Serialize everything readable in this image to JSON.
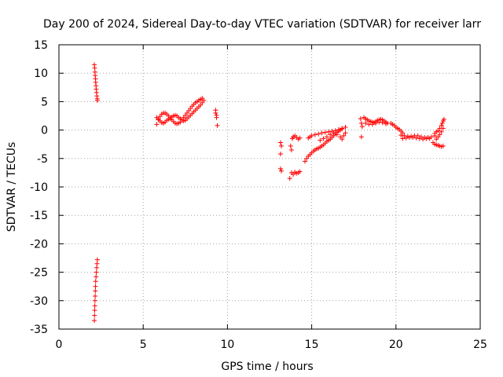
{
  "chart_data": {
    "type": "scatter",
    "title": "Day 200 of 2024, Sidereal Day-to-day VTEC variation (SDTVAR) for receiver larr",
    "xlabel": "GPS time / hours",
    "ylabel": "SDTVAR / TECUs",
    "xlim": [
      0,
      25
    ],
    "ylim": [
      -35,
      15
    ],
    "xticks": [
      0,
      5,
      10,
      15,
      20,
      25
    ],
    "yticks": [
      15,
      10,
      5,
      0,
      -5,
      -10,
      -15,
      -20,
      -25,
      -30,
      -35
    ],
    "xtick_labels": [
      "0",
      "5",
      "10",
      "15",
      "20",
      "25"
    ],
    "ytick_labels": [
      "15",
      "10",
      "5",
      "0",
      "-5",
      "-10",
      "-15",
      "-20",
      "-25",
      "-30",
      "-35"
    ],
    "grid": true,
    "marker": "+",
    "color": "#ff0000",
    "series": [
      {
        "name": "SDTVAR",
        "points": [
          [
            2.1,
            11.5
          ],
          [
            2.12,
            10.9
          ],
          [
            2.14,
            10.2
          ],
          [
            2.15,
            9.6
          ],
          [
            2.17,
            9.0
          ],
          [
            2.18,
            8.4
          ],
          [
            2.2,
            7.8
          ],
          [
            2.21,
            7.2
          ],
          [
            2.23,
            6.6
          ],
          [
            2.25,
            6.0
          ],
          [
            2.27,
            5.5
          ],
          [
            2.28,
            5.2
          ],
          [
            2.1,
            -33.5
          ],
          [
            2.11,
            -32.6
          ],
          [
            2.12,
            -31.7
          ],
          [
            2.13,
            -30.9
          ],
          [
            2.14,
            -30.0
          ],
          [
            2.15,
            -29.2
          ],
          [
            2.16,
            -28.3
          ],
          [
            2.17,
            -27.5
          ],
          [
            2.18,
            -26.6
          ],
          [
            2.2,
            -25.8
          ],
          [
            2.22,
            -25.0
          ],
          [
            2.24,
            -24.2
          ],
          [
            2.26,
            -23.5
          ],
          [
            2.28,
            -22.8
          ],
          [
            5.8,
            1.0
          ],
          [
            5.9,
            1.8
          ],
          [
            6.0,
            2.4
          ],
          [
            6.1,
            2.8
          ],
          [
            6.2,
            3.0
          ],
          [
            6.3,
            3.0
          ],
          [
            6.4,
            2.8
          ],
          [
            6.5,
            2.5
          ],
          [
            6.6,
            2.2
          ],
          [
            6.7,
            1.8
          ],
          [
            6.8,
            1.5
          ],
          [
            6.9,
            1.2
          ],
          [
            7.0,
            1.1
          ],
          [
            7.1,
            1.2
          ],
          [
            7.2,
            1.4
          ],
          [
            7.3,
            1.8
          ],
          [
            7.4,
            2.2
          ],
          [
            7.5,
            2.6
          ],
          [
            7.6,
            3.0
          ],
          [
            7.7,
            3.4
          ],
          [
            7.8,
            3.8
          ],
          [
            7.9,
            4.2
          ],
          [
            8.0,
            4.5
          ],
          [
            8.1,
            4.8
          ],
          [
            8.2,
            5.0
          ],
          [
            8.3,
            5.2
          ],
          [
            8.4,
            5.4
          ],
          [
            8.5,
            5.6
          ],
          [
            8.6,
            5.2
          ],
          [
            5.8,
            2.2
          ],
          [
            5.9,
            2.0
          ],
          [
            6.0,
            1.6
          ],
          [
            6.1,
            1.3
          ],
          [
            6.2,
            1.2
          ],
          [
            6.3,
            1.4
          ],
          [
            6.4,
            1.7
          ],
          [
            6.5,
            1.9
          ],
          [
            6.6,
            2.0
          ],
          [
            6.7,
            2.3
          ],
          [
            6.8,
            2.5
          ],
          [
            6.9,
            2.6
          ],
          [
            7.0,
            2.5
          ],
          [
            7.1,
            2.2
          ],
          [
            7.2,
            2.0
          ],
          [
            7.3,
            1.8
          ],
          [
            7.4,
            1.6
          ],
          [
            7.5,
            1.7
          ],
          [
            7.6,
            2.0
          ],
          [
            7.7,
            2.3
          ],
          [
            7.8,
            2.6
          ],
          [
            7.9,
            2.9
          ],
          [
            8.0,
            3.2
          ],
          [
            8.1,
            3.5
          ],
          [
            8.2,
            3.8
          ],
          [
            8.3,
            4.1
          ],
          [
            8.4,
            4.4
          ],
          [
            8.5,
            4.8
          ],
          [
            9.3,
            3.5
          ],
          [
            9.3,
            3.0
          ],
          [
            9.35,
            2.6
          ],
          [
            9.35,
            2.2
          ],
          [
            9.4,
            0.8
          ],
          [
            13.15,
            -2.2
          ],
          [
            13.2,
            -2.8
          ],
          [
            13.15,
            -4.2
          ],
          [
            13.15,
            -6.8
          ],
          [
            13.2,
            -7.2
          ],
          [
            13.7,
            -8.5
          ],
          [
            13.8,
            -7.5
          ],
          [
            13.9,
            -7.8
          ],
          [
            14.0,
            -7.4
          ],
          [
            14.1,
            -7.6
          ],
          [
            14.2,
            -7.5
          ],
          [
            14.3,
            -7.3
          ],
          [
            13.75,
            -2.8
          ],
          [
            13.8,
            -3.5
          ],
          [
            13.85,
            -1.5
          ],
          [
            13.9,
            -1.2
          ],
          [
            14.0,
            -1.0
          ],
          [
            14.1,
            -1.3
          ],
          [
            14.2,
            -1.6
          ],
          [
            14.3,
            -1.4
          ],
          [
            14.6,
            -5.5
          ],
          [
            14.7,
            -5.0
          ],
          [
            14.8,
            -4.6
          ],
          [
            14.9,
            -4.3
          ],
          [
            15.0,
            -4.0
          ],
          [
            15.1,
            -3.7
          ],
          [
            15.2,
            -3.5
          ],
          [
            15.3,
            -3.3
          ],
          [
            15.4,
            -3.2
          ],
          [
            15.5,
            -3.0
          ],
          [
            15.6,
            -2.8
          ],
          [
            15.7,
            -2.6
          ],
          [
            15.8,
            -2.3
          ],
          [
            15.9,
            -2.0
          ],
          [
            16.0,
            -1.8
          ],
          [
            16.1,
            -1.6
          ],
          [
            16.2,
            -1.3
          ],
          [
            16.3,
            -1.0
          ],
          [
            16.4,
            -0.7
          ],
          [
            16.5,
            -0.4
          ],
          [
            16.6,
            -0.2
          ],
          [
            16.7,
            0.0
          ],
          [
            16.8,
            0.2
          ],
          [
            14.8,
            -1.4
          ],
          [
            14.9,
            -1.2
          ],
          [
            15.0,
            -1.0
          ],
          [
            15.2,
            -0.8
          ],
          [
            15.4,
            -0.7
          ],
          [
            15.6,
            -0.5
          ],
          [
            15.8,
            -0.4
          ],
          [
            16.0,
            -0.3
          ],
          [
            16.2,
            -0.2
          ],
          [
            16.4,
            -0.1
          ],
          [
            16.6,
            0.1
          ],
          [
            16.8,
            0.3
          ],
          [
            17.0,
            0.5
          ],
          [
            15.5,
            -1.8
          ],
          [
            15.7,
            -1.5
          ],
          [
            15.9,
            -1.2
          ],
          [
            16.1,
            -0.8
          ],
          [
            16.3,
            -0.5
          ],
          [
            16.5,
            -0.8
          ],
          [
            16.7,
            -1.2
          ],
          [
            16.8,
            -1.6
          ],
          [
            16.9,
            -1.0
          ],
          [
            17.0,
            -0.5
          ],
          [
            17.9,
            2.0
          ],
          [
            17.95,
            1.2
          ],
          [
            18.0,
            0.6
          ],
          [
            17.95,
            -1.2
          ],
          [
            18.1,
            2.2
          ],
          [
            18.2,
            2.0
          ],
          [
            18.3,
            1.8
          ],
          [
            18.4,
            1.6
          ],
          [
            18.5,
            1.5
          ],
          [
            18.6,
            1.4
          ],
          [
            18.7,
            1.3
          ],
          [
            18.8,
            1.5
          ],
          [
            18.9,
            1.7
          ],
          [
            19.0,
            1.8
          ],
          [
            19.1,
            1.9
          ],
          [
            19.2,
            1.8
          ],
          [
            19.3,
            1.6
          ],
          [
            19.4,
            1.4
          ],
          [
            19.5,
            1.2
          ],
          [
            18.2,
            1.2
          ],
          [
            18.4,
            1.0
          ],
          [
            18.6,
            1.0
          ],
          [
            18.8,
            1.2
          ],
          [
            19.0,
            1.4
          ],
          [
            19.2,
            1.3
          ],
          [
            19.4,
            1.1
          ],
          [
            19.7,
            1.2
          ],
          [
            19.8,
            1.0
          ],
          [
            19.9,
            0.8
          ],
          [
            20.0,
            0.5
          ],
          [
            20.1,
            0.3
          ],
          [
            20.2,
            0.1
          ],
          [
            20.3,
            -0.2
          ],
          [
            20.4,
            -0.5
          ],
          [
            20.3,
            -0.9
          ],
          [
            20.5,
            -1.0
          ],
          [
            20.7,
            -1.1
          ],
          [
            20.9,
            -1.1
          ],
          [
            21.1,
            -1.0
          ],
          [
            21.3,
            -1.0
          ],
          [
            21.5,
            -1.2
          ],
          [
            21.7,
            -1.3
          ],
          [
            21.9,
            -1.3
          ],
          [
            22.1,
            -1.2
          ],
          [
            22.3,
            -1.0
          ],
          [
            20.4,
            -1.5
          ],
          [
            20.6,
            -1.4
          ],
          [
            20.8,
            -1.3
          ],
          [
            21.0,
            -1.3
          ],
          [
            21.2,
            -1.4
          ],
          [
            21.4,
            -1.5
          ],
          [
            21.6,
            -1.6
          ],
          [
            21.8,
            -1.5
          ],
          [
            22.0,
            -1.5
          ],
          [
            22.2,
            -2.2
          ],
          [
            22.3,
            -2.5
          ],
          [
            22.4,
            -2.6
          ],
          [
            22.5,
            -2.7
          ],
          [
            22.6,
            -2.8
          ],
          [
            22.7,
            -2.9
          ],
          [
            22.8,
            -2.8
          ],
          [
            22.3,
            -0.6
          ],
          [
            22.4,
            -0.3
          ],
          [
            22.5,
            -0.1
          ],
          [
            22.6,
            0.3
          ],
          [
            22.7,
            0.8
          ],
          [
            22.75,
            1.2
          ],
          [
            22.8,
            1.6
          ],
          [
            22.85,
            1.9
          ],
          [
            22.4,
            -1.6
          ],
          [
            22.5,
            -1.2
          ],
          [
            22.6,
            -0.8
          ],
          [
            22.7,
            -0.3
          ],
          [
            22.8,
            0.3
          ]
        ]
      }
    ]
  }
}
